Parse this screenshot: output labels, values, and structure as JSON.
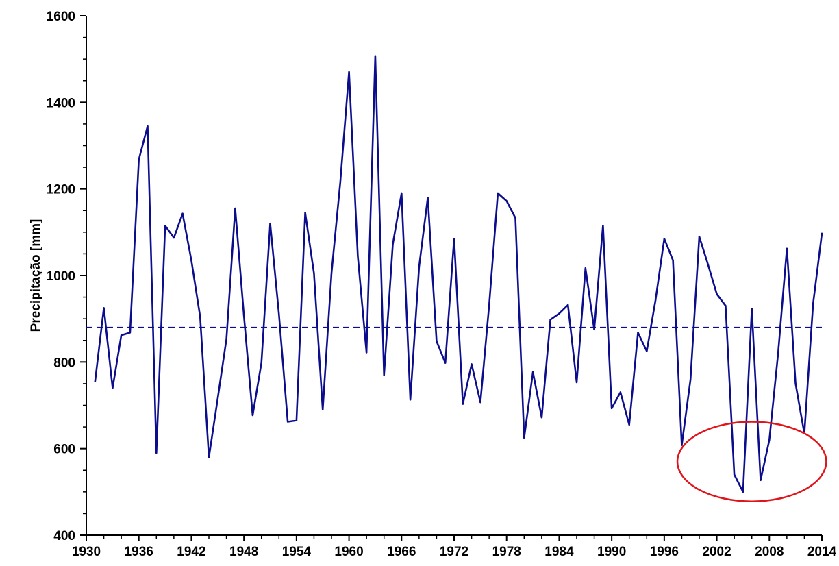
{
  "chart_data": {
    "type": "line",
    "title": "",
    "xlabel": "",
    "ylabel": "Precipitação [mm]",
    "xlim": [
      1930,
      2014
    ],
    "ylim": [
      400,
      1600
    ],
    "x_ticks": [
      1930,
      1936,
      1942,
      1948,
      1954,
      1960,
      1966,
      1972,
      1978,
      1984,
      1990,
      1996,
      2002,
      2008,
      2014
    ],
    "y_ticks": [
      400,
      600,
      800,
      1000,
      1200,
      1400,
      1600
    ],
    "grid": false,
    "legend": "none",
    "series": [
      {
        "style": "solid",
        "color": "#0b0d8c",
        "x": [
          1931,
          1932,
          1933,
          1934,
          1935,
          1936,
          1937,
          1938,
          1939,
          1940,
          1941,
          1942,
          1943,
          1944,
          1945,
          1946,
          1947,
          1948,
          1949,
          1950,
          1951,
          1952,
          1953,
          1954,
          1955,
          1956,
          1957,
          1958,
          1959,
          1960,
          1961,
          1962,
          1963,
          1964,
          1965,
          1966,
          1967,
          1968,
          1969,
          1970,
          1971,
          1972,
          1973,
          1974,
          1975,
          1976,
          1977,
          1978,
          1979,
          1980,
          1981,
          1982,
          1983,
          1984,
          1985,
          1986,
          1987,
          1988,
          1989,
          1990,
          1991,
          1992,
          1993,
          1994,
          1995,
          1996,
          1997,
          1998,
          1999,
          2000,
          2001,
          2002,
          2003,
          2004,
          2005,
          2006,
          2007,
          2008,
          2009,
          2010,
          2011,
          2012,
          2013,
          2014
        ],
        "y": [
          755,
          925,
          740,
          862,
          868,
          1268,
          1345,
          590,
          1115,
          1087,
          1143,
          1035,
          905,
          580,
          715,
          853,
          1155,
          908,
          677,
          798,
          1120,
          910,
          662,
          665,
          1145,
          1005,
          690,
          1005,
          1215,
          1470,
          1045,
          822,
          1507,
          770,
          1072,
          1190,
          713,
          1020,
          1180,
          848,
          798,
          1085,
          703,
          795,
          707,
          930,
          1190,
          1172,
          1133,
          625,
          777,
          672,
          898,
          912,
          932,
          753,
          1017,
          875,
          1115,
          693,
          730,
          655,
          868,
          825,
          943,
          1085,
          1035,
          608,
          760,
          1090,
          1025,
          957,
          930,
          540,
          500,
          923,
          527,
          620,
          820,
          1062,
          750,
          635,
          935,
          1097
        ]
      },
      {
        "style": "dashed",
        "color": "#0b0d8c",
        "x": [
          1930,
          2014
        ],
        "y": [
          880,
          880
        ]
      }
    ],
    "annotations": [
      {
        "type": "ellipse",
        "color": "#e0151b",
        "x_center": 2006,
        "y_center": 570,
        "x_radius": 8.5,
        "y_radius": 92
      }
    ]
  }
}
